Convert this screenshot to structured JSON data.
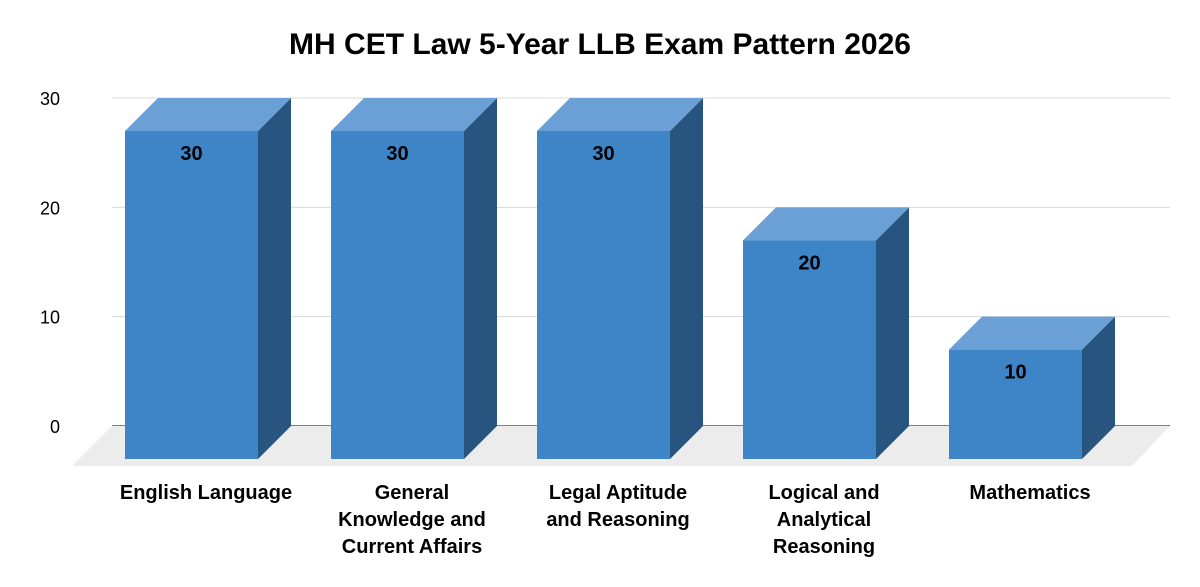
{
  "chart_data": {
    "type": "bar",
    "title": "MH CET Law 5-Year LLB Exam Pattern 2026",
    "xlabel": "",
    "ylabel": "",
    "categories": [
      "English Language",
      "General Knowledge and Current Affairs",
      "Legal Aptitude and Reasoning",
      "Logical and Analytical Reasoning",
      "Mathematics"
    ],
    "category_lines": [
      [
        "English Language"
      ],
      [
        "General",
        "Knowledge and",
        "Current Affairs"
      ],
      [
        "Legal Aptitude",
        "and Reasoning"
      ],
      [
        "Logical and",
        "Analytical",
        "Reasoning"
      ],
      [
        "Mathematics"
      ]
    ],
    "values": [
      30,
      30,
      30,
      20,
      10
    ],
    "data_labels": [
      "30",
      "30",
      "30",
      "20",
      "10"
    ],
    "ylim": [
      0,
      30
    ],
    "yticks": [
      0,
      10,
      20,
      30
    ],
    "ytick_labels": [
      "0",
      "10",
      "20",
      "30"
    ],
    "grid": true,
    "legend": "none",
    "style": "3d-bar",
    "colors": {
      "bar_front": "#3d85c6",
      "bar_top": "#6aa0d6",
      "bar_side": "#28557f",
      "floor": "#ececec",
      "grid": "#d9d9d9",
      "baseline": "#333333",
      "text": "#000000"
    }
  }
}
